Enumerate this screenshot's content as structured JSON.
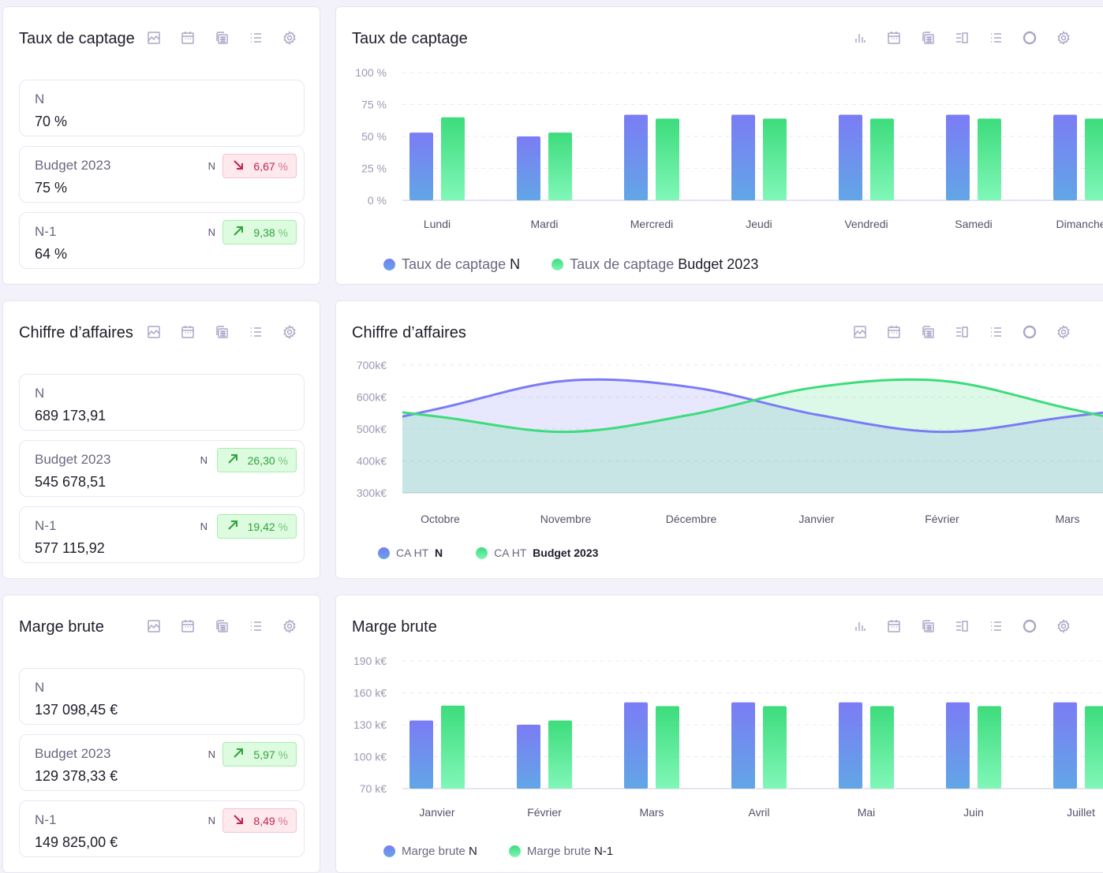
{
  "colors": {
    "series_n": "#7b7cf5",
    "series_b": "#3ddc7c",
    "down": "#c4214a",
    "up": "#2ea33a"
  },
  "panels": [
    {
      "title": "Taux de captage",
      "icons": [
        "area-chart-icon",
        "calendar-icon",
        "calculator-icon",
        "list-icon",
        "gear-icon"
      ],
      "stats": [
        {
          "label": "N",
          "value": "70 %"
        },
        {
          "label": "Budget 2023",
          "value": "75 %",
          "compare": "N",
          "trend": "down",
          "delta": "6,67",
          "unit": "%"
        },
        {
          "label": "N-1",
          "value": "64 %",
          "compare": "N",
          "trend": "up",
          "delta": "9,38",
          "unit": "%"
        }
      ]
    },
    {
      "title": "Chiffre d’affaires",
      "icons": [
        "area-chart-icon",
        "calendar-icon",
        "calculator-icon",
        "list-icon",
        "gear-icon"
      ],
      "stats": [
        {
          "label": "N",
          "value": "689 173,91"
        },
        {
          "label": "Budget 2023",
          "value": "545 678,51",
          "compare": "N",
          "trend": "up",
          "delta": "26,30",
          "unit": "%"
        },
        {
          "label": "N-1",
          "value": "577 115,92",
          "compare": "N",
          "trend": "up",
          "delta": "19,42",
          "unit": "%"
        }
      ]
    },
    {
      "title": "Marge brute",
      "icons": [
        "area-chart-icon",
        "calendar-icon",
        "calculator-icon",
        "list-icon",
        "gear-icon"
      ],
      "stats": [
        {
          "label": "N",
          "value": "137 098,45 €"
        },
        {
          "label": "Budget 2023",
          "value": "129 378,33 €",
          "compare": "N",
          "trend": "up",
          "delta": "5,97",
          "unit": "%"
        },
        {
          "label": "N-1",
          "value": "149 825,00 €",
          "compare": "N",
          "trend": "down",
          "delta": "8,49",
          "unit": "%"
        }
      ]
    }
  ],
  "chart_titles": [
    "Taux de captage",
    "Chiffre d’affaires",
    "Marge brute"
  ],
  "chart_icons": [
    [
      "bar-chart-icon",
      "calendar-icon",
      "calculator-icon",
      "columns-icon",
      "list-icon",
      "donut-icon",
      "gear-icon"
    ],
    [
      "area-chart-icon",
      "calendar-icon",
      "calculator-icon",
      "columns-icon",
      "list-icon",
      "donut-icon",
      "gear-icon"
    ],
    [
      "bar-chart-icon",
      "calendar-icon",
      "calculator-icon",
      "columns-icon",
      "list-icon",
      "donut-icon",
      "gear-icon"
    ]
  ],
  "chart_data": [
    {
      "type": "bar",
      "categories": [
        "Lundi",
        "Mardi",
        "Mercredi",
        "Jeudi",
        "Vendredi",
        "Samedi",
        "Dimanche"
      ],
      "yticks": [
        "0 %",
        "25 %",
        "50 %",
        "75 %",
        "100 %"
      ],
      "ylim": [
        0,
        100
      ],
      "grid": true,
      "series": [
        {
          "name": "Taux de captage N",
          "prefix": "Taux de captage",
          "suffix": "N",
          "values": [
            53,
            50,
            67,
            67,
            67,
            67,
            67
          ]
        },
        {
          "name": "Taux de captage Budget 2023",
          "prefix": "Taux de captage",
          "suffix": "Budget 2023",
          "values": [
            65,
            53,
            64,
            64,
            64,
            64,
            64
          ]
        }
      ],
      "legend": "bottom-left"
    },
    {
      "type": "area",
      "categories": [
        "Octobre",
        "Novembre",
        "Décembre",
        "Janvier",
        "Février",
        "Mars"
      ],
      "yticks": [
        "300k€",
        "400k€",
        "500k€",
        "600k€",
        "700k€"
      ],
      "ylim": [
        300,
        700
      ],
      "grid": true,
      "series": [
        {
          "name": "CA HT N",
          "prefix": "CA HT",
          "suffix": "N",
          "values": [
            565,
            651,
            631,
            545,
            491,
            538
          ]
        },
        {
          "name": "CA HT Budget 2023",
          "prefix": "CA HT",
          "suffix": "Budget 2023",
          "values": [
            538,
            491,
            545,
            631,
            651,
            565
          ]
        }
      ],
      "legend": "bottom-left"
    },
    {
      "type": "bar",
      "categories": [
        "Janvier",
        "Février",
        "Mars",
        "Avril",
        "Mai",
        "Juin",
        "Juillet"
      ],
      "yticks": [
        "70 k€",
        "100 k€",
        "130 k€",
        "160 k€",
        "190 k€"
      ],
      "ylim": [
        70,
        190
      ],
      "grid": true,
      "series": [
        {
          "name": "Marge brute N",
          "prefix": "Marge brute",
          "suffix": "N",
          "values": [
            134,
            130,
            151,
            151,
            151,
            151,
            151
          ]
        },
        {
          "name": "Marge brute N-1",
          "prefix": "Marge brute",
          "suffix": "N-1",
          "values": [
            148,
            134,
            147.5,
            147.5,
            147.5,
            147.5,
            147.5
          ]
        }
      ],
      "legend": "bottom-left"
    }
  ]
}
